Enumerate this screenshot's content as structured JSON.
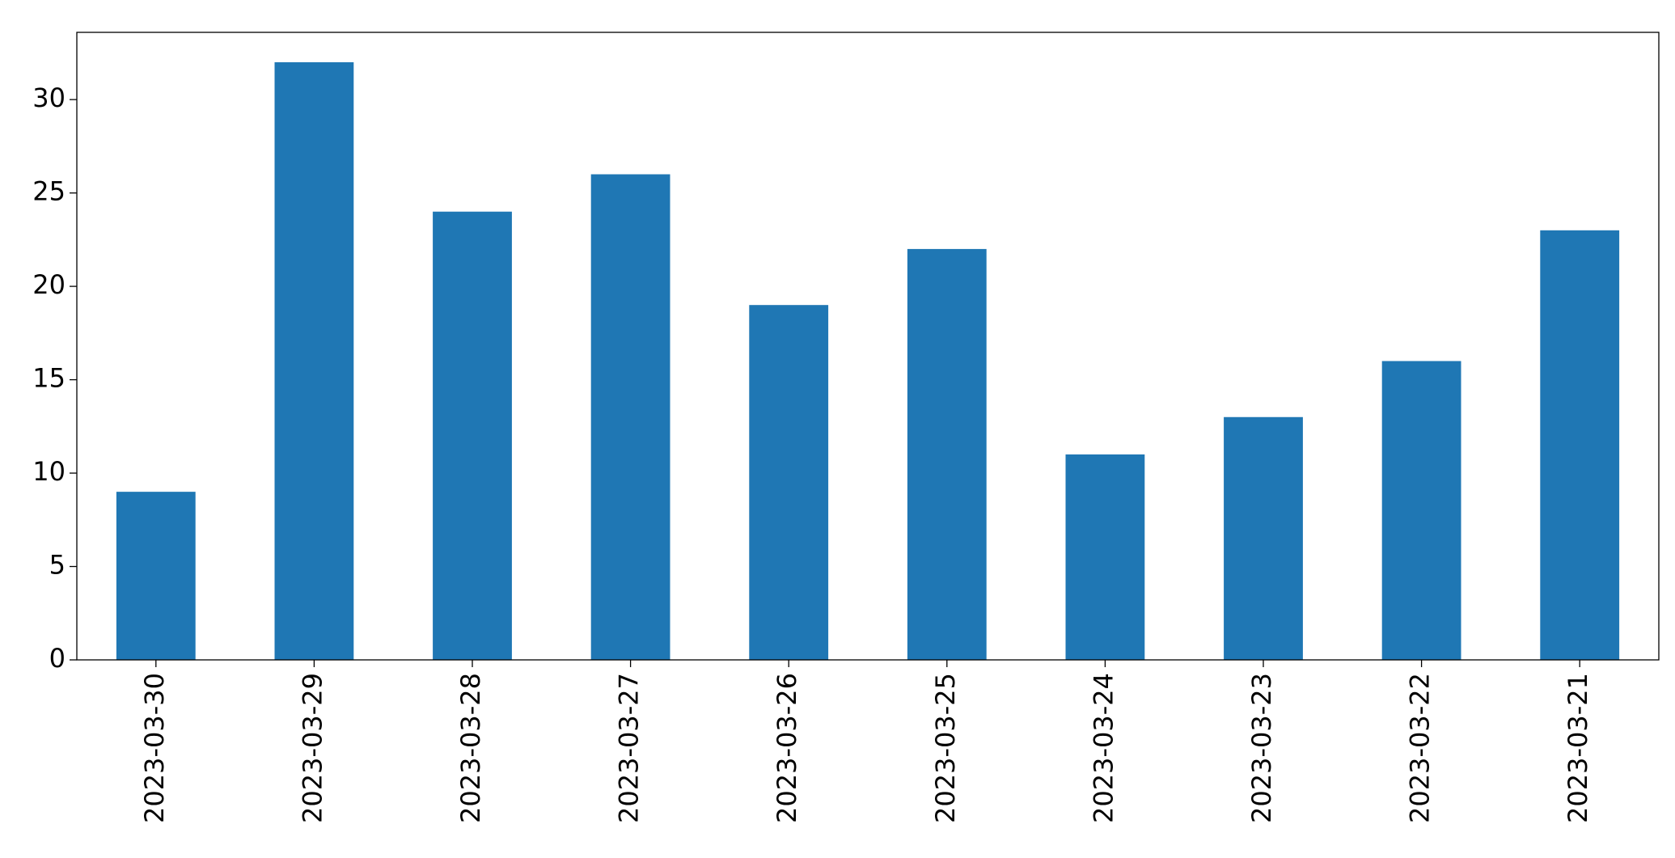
{
  "chart_data": {
    "type": "bar",
    "categories": [
      "2023-03-30",
      "2023-03-29",
      "2023-03-28",
      "2023-03-27",
      "2023-03-26",
      "2023-03-25",
      "2023-03-24",
      "2023-03-23",
      "2023-03-22",
      "2023-03-21"
    ],
    "values": [
      9,
      32,
      24,
      26,
      19,
      22,
      11,
      13,
      16,
      23
    ],
    "color": "#1f77b4",
    "ylim": [
      0,
      33.6
    ],
    "yticks": [
      0,
      5,
      10,
      15,
      20,
      25,
      30
    ],
    "grid": false
  }
}
